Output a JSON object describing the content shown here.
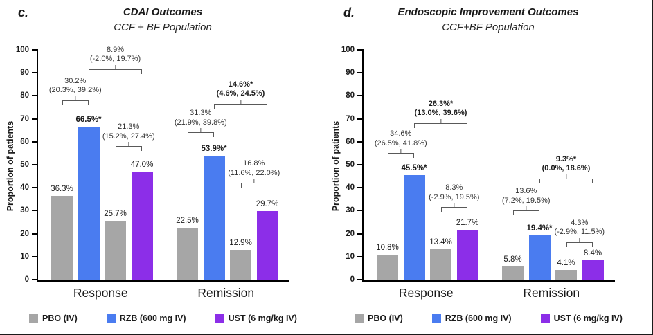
{
  "figure": {
    "legend": [
      {
        "series": "PBO",
        "label": "PBO (IV)",
        "color": "#a6a6a6"
      },
      {
        "series": "RZB",
        "label": "RZB (600 mg IV)",
        "color": "#4a7cf0"
      },
      {
        "series": "UST",
        "label": "UST (6 mg/kg IV)",
        "color": "#8c2ee8"
      }
    ]
  },
  "chart_data": [
    {
      "type": "bar",
      "panel_label": "c.",
      "title": "CDAI Outcomes",
      "subtitle": "CCF + BF Population",
      "ylabel": "Proportion of patients",
      "ylim": [
        0,
        100
      ],
      "ytick_step": 10,
      "grid": false,
      "legend_position": "bottom",
      "categories": [
        "Response",
        "Remission"
      ],
      "groups": [
        {
          "category": "Response",
          "bars": [
            {
              "series": "PBO",
              "value": 36.3,
              "label": "36.3%",
              "bold": false
            },
            {
              "series": "RZB",
              "value": 66.5,
              "label": "66.5%*",
              "bold": true
            },
            {
              "series": "PBO",
              "value": 25.7,
              "label": "25.7%",
              "bold": false
            },
            {
              "series": "UST",
              "value": 47.0,
              "label": "47.0%",
              "bold": false
            }
          ],
          "comparisons": [
            {
              "from": 0,
              "to": 1,
              "diff": "30.2%",
              "ci": "(20.3%, 39.2%)",
              "bold": false,
              "level": 76
            },
            {
              "from": 2,
              "to": 3,
              "diff": "21.3%",
              "ci": "(15.2%, 27.4%)",
              "bold": false,
              "level": 56
            },
            {
              "from": 1,
              "to": 3,
              "diff": "8.9%",
              "ci": "(-2.0%, 19.7%)",
              "bold": false,
              "level": 89.5
            }
          ]
        },
        {
          "category": "Remission",
          "bars": [
            {
              "series": "PBO",
              "value": 22.5,
              "label": "22.5%",
              "bold": false
            },
            {
              "series": "RZB",
              "value": 53.9,
              "label": "53.9%*",
              "bold": true
            },
            {
              "series": "PBO",
              "value": 12.9,
              "label": "12.9%",
              "bold": false
            },
            {
              "series": "UST",
              "value": 29.7,
              "label": "29.7%",
              "bold": false
            }
          ],
          "comparisons": [
            {
              "from": 0,
              "to": 1,
              "diff": "31.3%",
              "ci": "(21.9%, 39.8%)",
              "bold": false,
              "level": 62
            },
            {
              "from": 2,
              "to": 3,
              "diff": "16.8%",
              "ci": "(11.6%, 22.0%)",
              "bold": false,
              "level": 40
            },
            {
              "from": 1,
              "to": 3,
              "diff": "14.6%*",
              "ci": "(4.6%, 24.5%)",
              "bold": true,
              "level": 74.5
            }
          ]
        }
      ]
    },
    {
      "type": "bar",
      "panel_label": "d.",
      "title": "Endoscopic Improvement Outcomes",
      "subtitle": "CCF+BF Population",
      "ylabel": "Proportion of patients",
      "ylim": [
        0,
        100
      ],
      "ytick_step": 10,
      "grid": false,
      "legend_position": "bottom",
      "categories": [
        "Response",
        "Remission"
      ],
      "groups": [
        {
          "category": "Response",
          "bars": [
            {
              "series": "PBO",
              "value": 10.8,
              "label": "10.8%",
              "bold": false
            },
            {
              "series": "RZB",
              "value": 45.5,
              "label": "45.5%*",
              "bold": true
            },
            {
              "series": "PBO",
              "value": 13.4,
              "label": "13.4%",
              "bold": false
            },
            {
              "series": "UST",
              "value": 21.7,
              "label": "21.7%",
              "bold": false
            }
          ],
          "comparisons": [
            {
              "from": 0,
              "to": 1,
              "diff": "34.6%",
              "ci": "(26.5%, 41.8%)",
              "bold": false,
              "level": 53
            },
            {
              "from": 2,
              "to": 3,
              "diff": "8.3%",
              "ci": "(-2.9%, 19.5%)",
              "bold": false,
              "level": 29.5
            },
            {
              "from": 1,
              "to": 3,
              "diff": "26.3%*",
              "ci": "(13.0%, 39.6%)",
              "bold": true,
              "level": 66
            }
          ]
        },
        {
          "category": "Remission",
          "bars": [
            {
              "series": "PBO",
              "value": 5.8,
              "label": "5.8%",
              "bold": false
            },
            {
              "series": "RZB",
              "value": 19.4,
              "label": "19.4%*",
              "bold": true
            },
            {
              "series": "PBO",
              "value": 4.1,
              "label": "4.1%",
              "bold": false
            },
            {
              "series": "UST",
              "value": 8.4,
              "label": "8.4%",
              "bold": false
            }
          ],
          "comparisons": [
            {
              "from": 0,
              "to": 1,
              "diff": "13.6%",
              "ci": "(7.2%, 19.5%)",
              "bold": false,
              "level": 28
            },
            {
              "from": 2,
              "to": 3,
              "diff": "4.3%",
              "ci": "(-2.9%, 11.5%)",
              "bold": false,
              "level": 14.3
            },
            {
              "from": 1,
              "to": 3,
              "diff": "9.3%*",
              "ci": "(0.0%, 18.6%)",
              "bold": true,
              "level": 42
            }
          ]
        }
      ]
    }
  ]
}
